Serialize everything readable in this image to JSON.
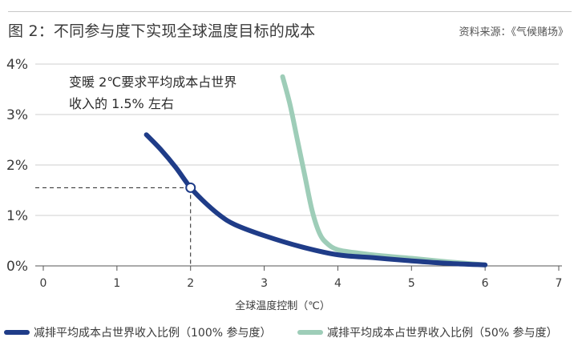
{
  "figure_title": "图 2：不同参与度下实现全球温度目标的成本",
  "source_text": "资料来源：《气候赌场》",
  "chart_data": {
    "type": "line",
    "xlabel": "全球温度控制（℃）",
    "ylabel": "",
    "xlim": [
      0,
      7
    ],
    "ylim": [
      0,
      4
    ],
    "x_ticks": [
      0,
      1,
      2,
      3,
      4,
      5,
      6,
      7
    ],
    "y_ticks": [
      0,
      1,
      2,
      3,
      4
    ],
    "x_tick_labels": [
      "0",
      "1",
      "2",
      "3",
      "4",
      "5",
      "6",
      "7"
    ],
    "y_tick_labels": [
      "0%",
      "1%",
      "2%",
      "3%",
      "4%"
    ],
    "grid": "horizontal",
    "legend_position": "bottom",
    "series": [
      {
        "name": "减排平均成本占世界收入比例（100% 参与度）",
        "color": "#1f3c88",
        "x": [
          1.4,
          1.6,
          1.8,
          2.0,
          2.2,
          2.4,
          2.6,
          3.0,
          3.5,
          4.0,
          4.5,
          5.0,
          5.5,
          6.0
        ],
        "y": [
          2.6,
          2.3,
          1.95,
          1.55,
          1.25,
          1.0,
          0.82,
          0.6,
          0.38,
          0.22,
          0.16,
          0.1,
          0.05,
          0.02
        ]
      },
      {
        "name": "减排平均成本占世界收入比例（50% 参与度）",
        "color": "#9ecdb8",
        "x": [
          3.25,
          3.35,
          3.45,
          3.55,
          3.65,
          3.75,
          3.85,
          4.0,
          4.3,
          4.6,
          5.0,
          5.5,
          6.0
        ],
        "y": [
          3.75,
          3.2,
          2.5,
          1.8,
          1.1,
          0.65,
          0.45,
          0.32,
          0.25,
          0.2,
          0.15,
          0.08,
          0.02
        ]
      }
    ],
    "marker": {
      "x": 2.0,
      "y": 1.55
    },
    "annotation_lines": [
      "变暖 2℃要求平均成本占世界",
      "收入的 1.5% 左右"
    ]
  }
}
